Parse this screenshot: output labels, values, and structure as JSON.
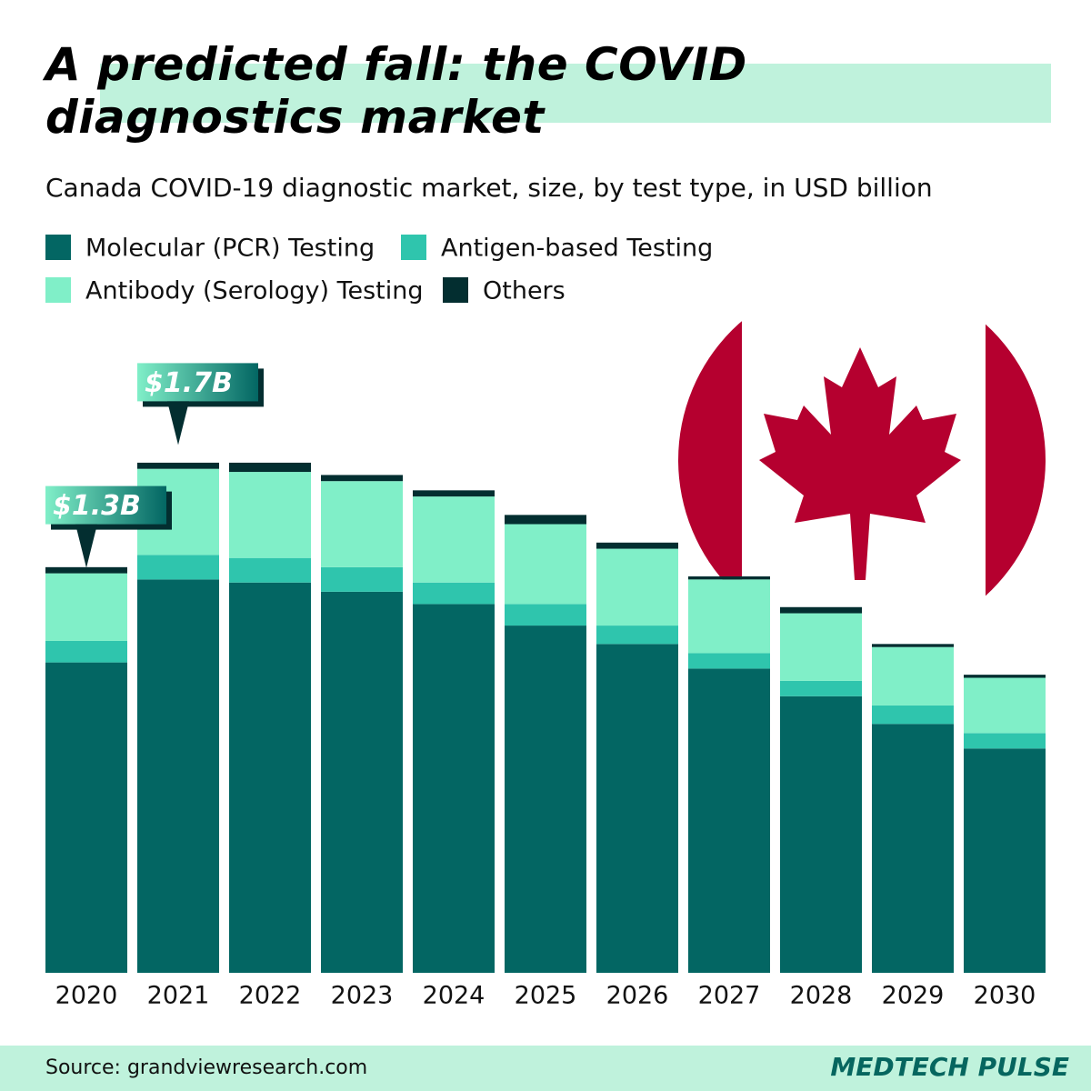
{
  "chart_data": {
    "type": "stacked-bar",
    "title": "A predicted fall: the COVID diagnostics market",
    "subtitle": "Canada COVID-19 diagnostic market, size, by test type, in USD billion",
    "categories": [
      "2020",
      "2021",
      "2022",
      "2023",
      "2024",
      "2025",
      "2026",
      "2027",
      "2028",
      "2029",
      "2030"
    ],
    "series": [
      {
        "name": "Molecular (PCR) Testing",
        "color": "#036663",
        "values": [
          1.01,
          1.28,
          1.27,
          1.24,
          1.2,
          1.13,
          1.07,
          0.99,
          0.9,
          0.81,
          0.73
        ]
      },
      {
        "name": "Antigen-based Testing",
        "color": "#2fc5ad",
        "values": [
          0.07,
          0.08,
          0.08,
          0.08,
          0.07,
          0.07,
          0.06,
          0.05,
          0.05,
          0.06,
          0.05
        ]
      },
      {
        "name": "Antibody (Serology) Testing",
        "color": "#80efc8",
        "values": [
          0.22,
          0.28,
          0.28,
          0.28,
          0.28,
          0.26,
          0.25,
          0.24,
          0.22,
          0.19,
          0.18
        ]
      },
      {
        "name": "Others",
        "color": "#032e30",
        "values": [
          0.02,
          0.02,
          0.03,
          0.02,
          0.02,
          0.03,
          0.02,
          0.01,
          0.02,
          0.01,
          0.01
        ]
      }
    ],
    "annotations": [
      {
        "label": "$1.3B",
        "value": 1.3,
        "category": "2020"
      },
      {
        "label": "$1.7B",
        "value": 1.7,
        "category": "2021"
      }
    ],
    "source": "Source: grandviewresearch.com",
    "brand": "MEDTECH PULSE"
  }
}
